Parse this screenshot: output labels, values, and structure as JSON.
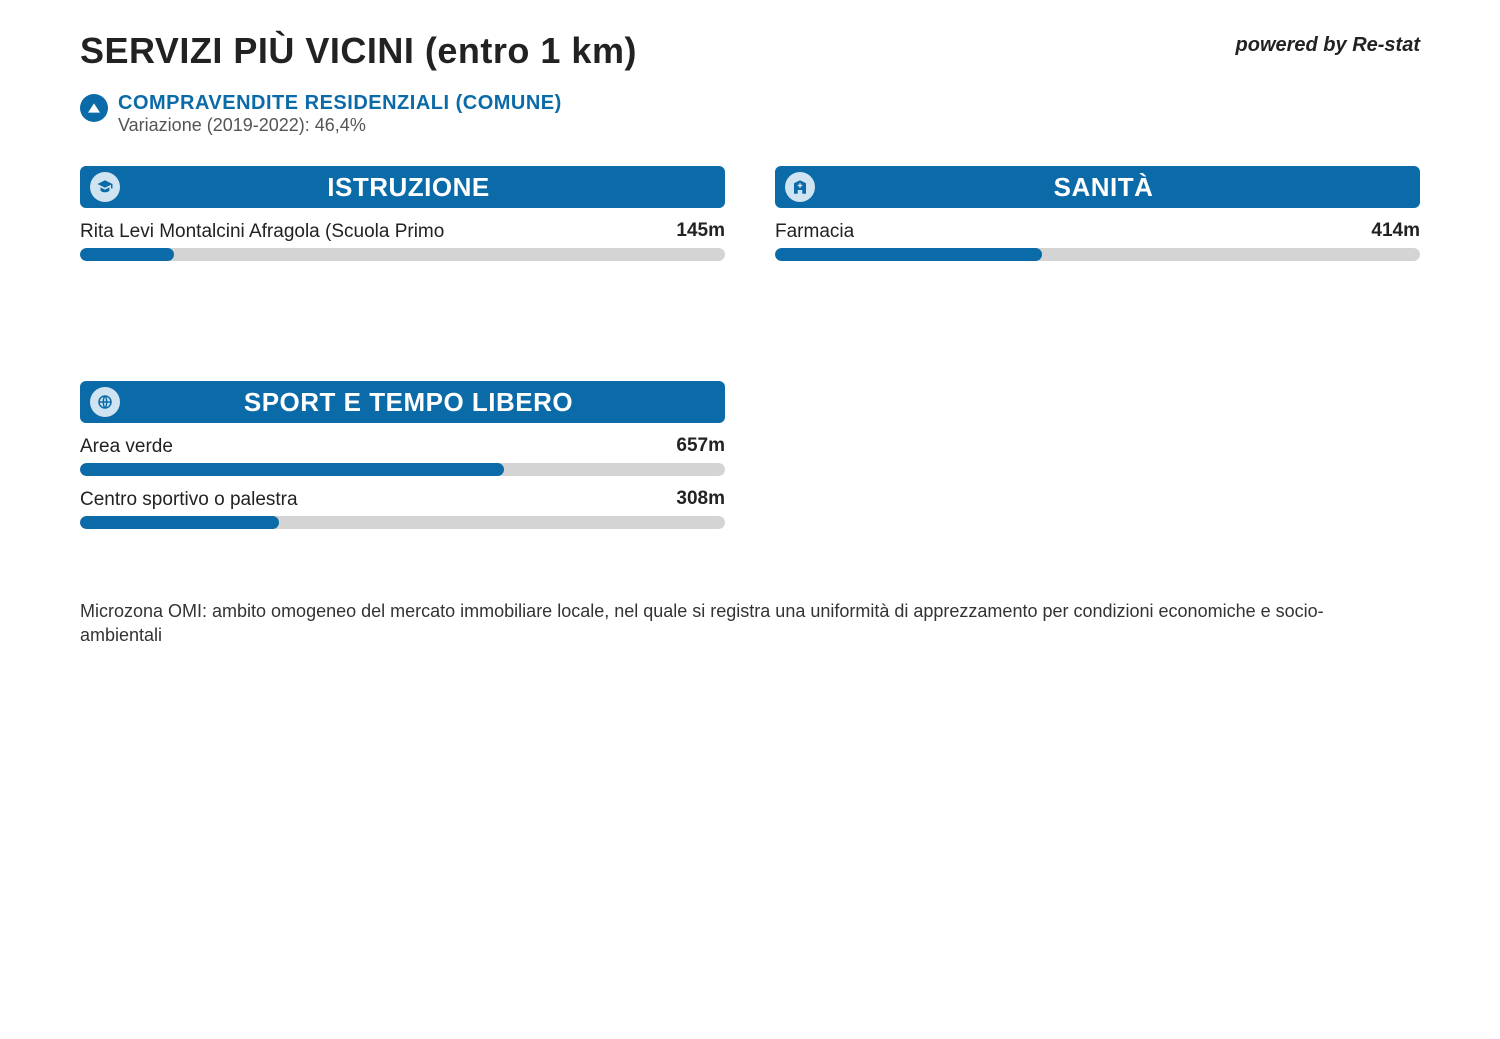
{
  "colors": {
    "brand": "#0b6ba8",
    "track": "#d4d4d4",
    "icon_bg": "#cfe3f0",
    "background": "#ffffff"
  },
  "header": {
    "title": "SERVIZI PIÙ VICINI (entro 1 km)",
    "powered": "powered by Re-stat"
  },
  "trend": {
    "label": "COMPRAVENDITE RESIDENZIALI (COMUNE)",
    "subtitle": "Variazione (2019-2022): 46,4%",
    "direction": "up"
  },
  "max_distance_m": 1000,
  "panels": [
    {
      "key": "istruzione",
      "title": "ISTRUZIONE",
      "icon": "school",
      "items": [
        {
          "name": "Rita Levi Montalcini Afragola (Scuola Primo",
          "distance_m": 145,
          "distance_label": "145m",
          "fill_pct": 14.5
        }
      ]
    },
    {
      "key": "sanita",
      "title": "SANITÀ",
      "icon": "hospital",
      "items": [
        {
          "name": "Farmacia",
          "distance_m": 414,
          "distance_label": "414m",
          "fill_pct": 41.4
        }
      ]
    },
    {
      "key": "sport",
      "title": "SPORT E TEMPO LIBERO",
      "icon": "sport",
      "items": [
        {
          "name": "Area verde",
          "distance_m": 657,
          "distance_label": "657m",
          "fill_pct": 65.7
        },
        {
          "name": "Centro sportivo o palestra",
          "distance_m": 308,
          "distance_label": "308m",
          "fill_pct": 30.8
        }
      ]
    }
  ],
  "footnote": "Microzona OMI: ambito omogeneo del mercato immobiliare locale, nel quale si registra una uniformità di apprezzamento per condizioni economiche e socio-ambientali"
}
